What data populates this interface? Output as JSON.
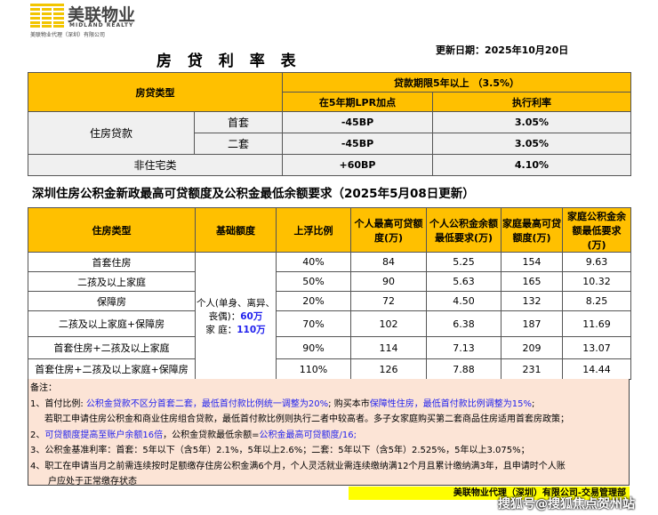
{
  "logo": {
    "cn": "美联物业",
    "en": "MIDLAND REALTY",
    "company": "美联物业代理（深圳）有限公司",
    "color": "#F2C500"
  },
  "update_date": "更新日期：2025年10月20日",
  "title1": "房 贷 利 率 表",
  "t1": {
    "type_header": "房贷类型",
    "term_header": "贷款期限5年以上 （3.5%）",
    "col_lpr": "在5年期LPR加点",
    "col_rate": "执行利率",
    "rows": [
      {
        "cat": "住房贷款",
        "sub": "首套",
        "lpr": "-45BP",
        "rate": "3.05%"
      },
      {
        "sub": "二套",
        "lpr": "-45BP",
        "rate": "3.05%"
      },
      {
        "cat": "非住宅类",
        "lpr": "+60BP",
        "rate": "4.10%"
      }
    ]
  },
  "title2": "深圳住房公积金新政最高可贷额度及公积金最低余额要求（2025年5月08日更新）",
  "t2": {
    "headers": [
      "住房类型",
      "基础额度",
      "上浮比例",
      "个人最高可贷额度(万)",
      "个人公积金余额最低要求(万)",
      "家庭最高可贷额度(万)",
      "家庭公积金余额最低要求(万)"
    ],
    "base_lines": [
      "个人(单身、离异、丧偶)：",
      "60万",
      "家 庭：",
      "110万"
    ],
    "rows": [
      [
        "首套住房",
        "40%",
        "84",
        "5.25",
        "154",
        "9.63"
      ],
      [
        "二孩及以上家庭",
        "50%",
        "90",
        "5.63",
        "165",
        "10.32"
      ],
      [
        "保障房",
        "20%",
        "72",
        "4.50",
        "132",
        "8.25"
      ],
      [
        "二孩及以上家庭+保障房",
        "70%",
        "102",
        "6.38",
        "187",
        "11.69"
      ],
      [
        "首套住房+二孩及以上家庭",
        "90%",
        "114",
        "7.13",
        "209",
        "13.07"
      ],
      [
        "首套住房+二孩及以上家庭+保障房",
        "110%",
        "126",
        "7.88",
        "231",
        "14.44"
      ]
    ]
  },
  "notes": {
    "title": "备注：",
    "n1a": "1、首付比例: ",
    "n1b": "公积金贷款不区分首套二套，最低首付款比例统一调整为20%",
    "n1c": "; 购买本市",
    "n1d": "保障性住房，最低首付款比例调整为15%",
    "n1e": ";",
    "n1f": "若职工申请住房公积金和商业住房组合贷款，最低首付款比例则执行二者中较高者。多子女家庭购买第二套商品住房适用首套房政策；",
    "n2a": "2、",
    "n2b": "可贷额度提高至账户余额16倍",
    "n2c": "，公积金贷款最低余额=",
    "n2d": "公积金最高可贷额度/16;",
    "n3": "3、公积金基准利率：首套：5年以下（含5年）2.1%，5年以上2.6%；二套：5年以下（含5年）2.525%，5年以上3.075%；",
    "n4": "4、职工在申请当月之前需连续按时足额缴存住房公积金满6个月，个人灵活就业需连续缴纳满12个月且累计缴纳满3年，且申请时个人账",
    "n4b": "户应处于正常缴存状态"
  },
  "footer": "美联物业代理（深圳）有限公司-交易管理部",
  "watermark": "搜狐号@搜狐焦点贺州站"
}
